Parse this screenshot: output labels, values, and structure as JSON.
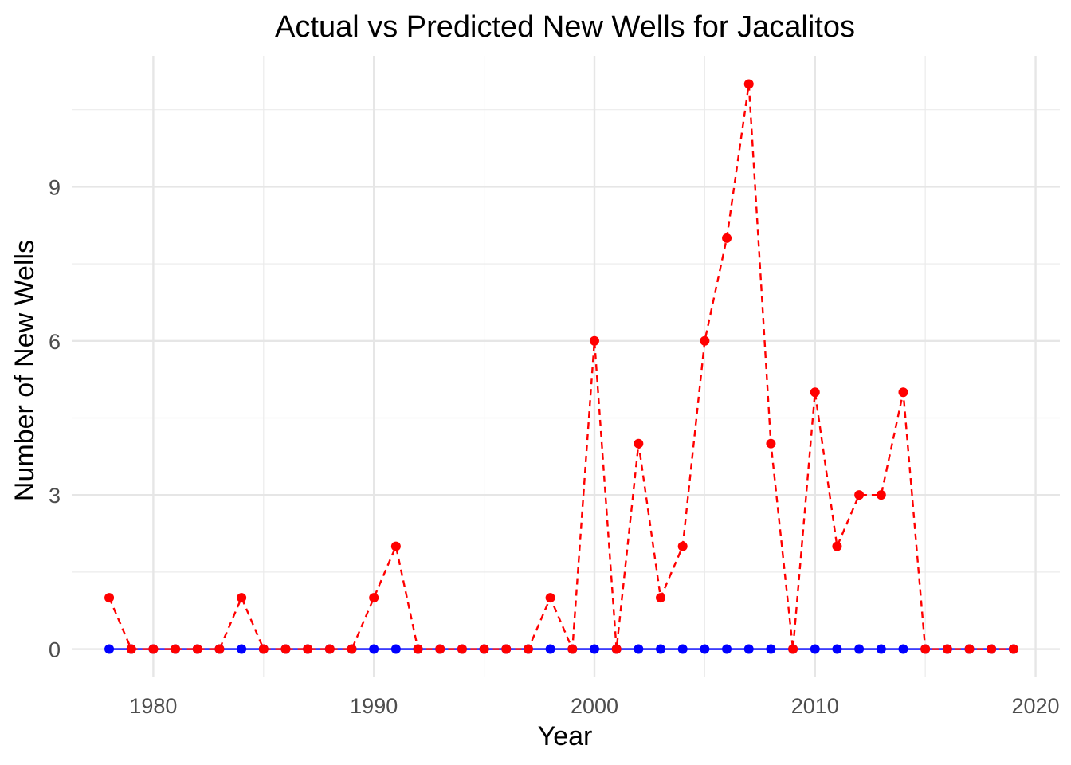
{
  "chart_data": {
    "type": "line",
    "title": "Actual vs Predicted New Wells for Jacalitos",
    "xlabel": "Year",
    "ylabel": "Number of New Wells",
    "xlim": [
      1976.3,
      2021.1
    ],
    "ylim": [
      -0.55,
      11.55
    ],
    "x_ticks": [
      1980,
      1990,
      2000,
      2010,
      2020
    ],
    "y_ticks": [
      0,
      3,
      6,
      9
    ],
    "grid": true,
    "legend": "none",
    "x": [
      1978,
      1979,
      1980,
      1981,
      1982,
      1983,
      1984,
      1985,
      1986,
      1987,
      1988,
      1989,
      1990,
      1991,
      1992,
      1993,
      1994,
      1995,
      1996,
      1997,
      1998,
      1999,
      2000,
      2001,
      2002,
      2003,
      2004,
      2005,
      2006,
      2007,
      2008,
      2009,
      2010,
      2011,
      2012,
      2013,
      2014,
      2015,
      2016,
      2017,
      2018,
      2019
    ],
    "series": [
      {
        "color": "#0000ff",
        "line_style": "solid",
        "values": [
          0,
          0,
          0,
          0,
          0,
          0,
          0,
          0,
          0,
          0,
          0,
          0,
          0,
          0,
          0,
          0,
          0,
          0,
          0,
          0,
          0,
          0,
          0,
          0,
          0,
          0,
          0,
          0,
          0,
          0,
          0,
          0,
          0,
          0,
          0,
          0,
          0,
          0,
          0,
          0,
          0,
          0
        ]
      },
      {
        "color": "#ff0000",
        "line_style": "dashed",
        "values": [
          1,
          0,
          0,
          0,
          0,
          0,
          1,
          0,
          0,
          0,
          0,
          0,
          1,
          2,
          0,
          0,
          0,
          0,
          0,
          0,
          1,
          0,
          6,
          0,
          4,
          1,
          2,
          6,
          8,
          11,
          4,
          0,
          5,
          2,
          3,
          3,
          5,
          0,
          0,
          0,
          0,
          0
        ]
      }
    ]
  }
}
